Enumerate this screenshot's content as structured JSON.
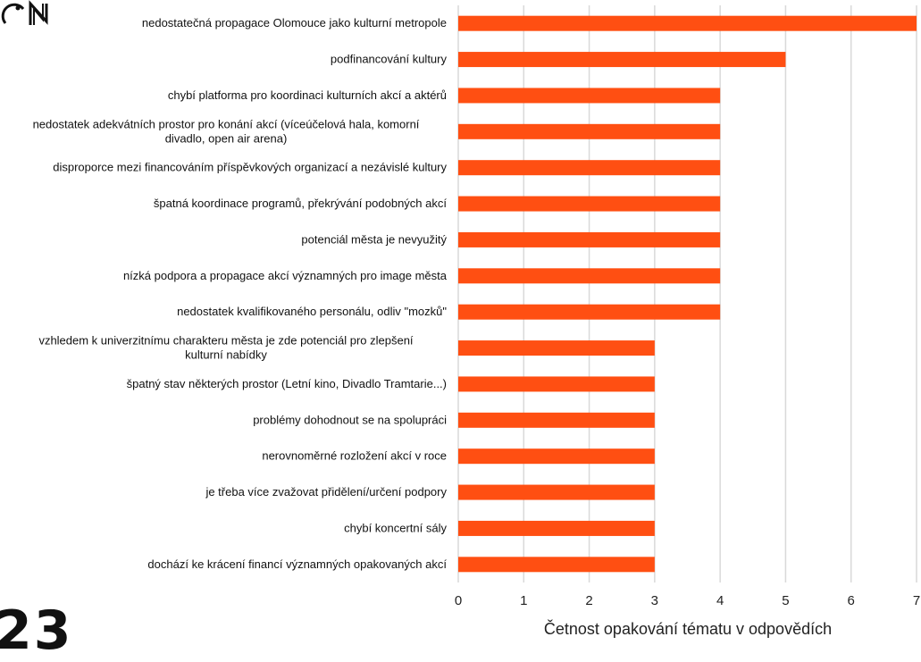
{
  "chart_data": {
    "type": "bar",
    "orientation": "horizontal",
    "categories": [
      "nedostatečná propagace Olomouce jako kulturní metropole",
      "podfinancování kultury",
      "chybí platforma pro koordinaci kulturních akcí a aktérů",
      "nedostatek adekvátních prostor pro konání akcí (víceúčelová hala, komorní divadlo, open air arena)",
      "disproporce mezi financováním příspěvkových organizací a nezávislé kultury",
      "špatná koordinace programů, překrývání podobných akcí",
      "potenciál města je nevyužitý",
      "nízká podpora a propagace akcí významných pro image města",
      "nedostatek kvalifikovaného personálu, odliv \"mozků\"",
      "vzhledem k univerzitnímu charakteru města je zde potenciál pro zlepšení kulturní nabídky",
      "špatný stav některých prostor (Letní kino, Divadlo Tramtarie...)",
      "problémy dohodnout se na spolupráci",
      "nerovnoměrné rozložení akcí v roce",
      "je třeba více zvažovat přidělení/určení podpory",
      "chybí koncertní sály",
      "dochází ke krácení financí významných opakovaných akcí"
    ],
    "values": [
      7,
      5,
      4,
      4,
      4,
      4,
      4,
      4,
      4,
      3,
      3,
      3,
      3,
      3,
      3,
      3
    ],
    "xlabel": "Četnost opakování tématu v odpovědích",
    "xlim": [
      0,
      7
    ],
    "xticks": [
      "0",
      "1",
      "2",
      "3",
      "4",
      "5",
      "6",
      "7"
    ],
    "grid": true,
    "bar_color": "#FF4F12",
    "grid_color": "#D9D9D9"
  },
  "logos": {
    "left_text": "23",
    "right_text": "ON"
  }
}
